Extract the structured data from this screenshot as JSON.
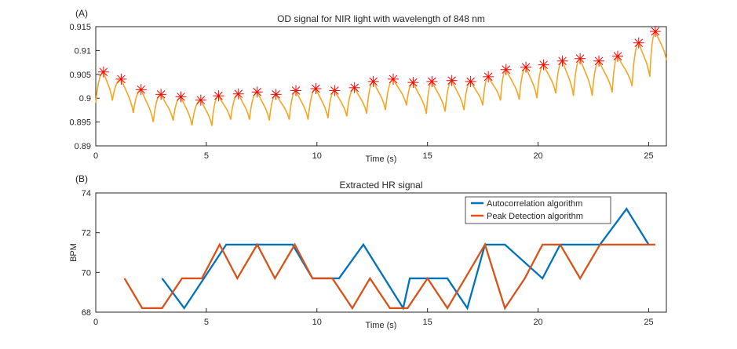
{
  "chart_data": [
    {
      "type": "line",
      "panel_label": "(A)",
      "title": "OD signal for NIR light with wavelength of 848 nm",
      "xlabel": "Time (s)",
      "ylabel": "",
      "xlim": [
        0,
        25.8
      ],
      "ylim": [
        0.89,
        0.915
      ],
      "xticks": [
        0,
        5,
        10,
        15,
        20,
        25
      ],
      "yticks": [
        0.89,
        0.895,
        0.9,
        0.905,
        0.91,
        0.915
      ],
      "ytick_labels": [
        "0.89",
        "0.895",
        "0.9",
        "0.905",
        "0.91",
        "0.915"
      ],
      "grid": false,
      "line_color": "#F5A623",
      "marker_color": "#FF0000",
      "peaks": {
        "t": [
          0.35,
          1.15,
          2.05,
          2.95,
          3.85,
          4.75,
          5.55,
          6.45,
          7.3,
          8.15,
          9.05,
          9.95,
          10.8,
          11.7,
          12.55,
          13.45,
          14.35,
          15.2,
          16.1,
          16.95,
          17.75,
          18.55,
          19.45,
          20.25,
          21.1,
          21.9,
          22.75,
          23.6,
          24.55,
          25.3
        ],
        "od": [
          0.9055,
          0.904,
          0.9018,
          0.9008,
          0.9003,
          0.8996,
          0.9005,
          0.9009,
          0.9013,
          0.9008,
          0.9016,
          0.902,
          0.9016,
          0.9022,
          0.9035,
          0.904,
          0.9033,
          0.9035,
          0.9037,
          0.9035,
          0.9045,
          0.906,
          0.9065,
          0.907,
          0.9078,
          0.9083,
          0.9078,
          0.9088,
          0.9116,
          0.914
        ]
      },
      "troughs": {
        "t": [
          0.0,
          0.75,
          1.7,
          2.6,
          3.5,
          4.35,
          5.25,
          6.1,
          6.95,
          7.85,
          8.75,
          9.6,
          10.5,
          11.35,
          12.25,
          13.1,
          14.05,
          14.95,
          15.8,
          16.65,
          17.5,
          18.3,
          19.15,
          19.95,
          20.8,
          21.6,
          22.45,
          23.35,
          24.25,
          25.05,
          25.8
        ],
        "od": [
          0.899,
          0.8995,
          0.8969,
          0.895,
          0.8953,
          0.8943,
          0.8942,
          0.8955,
          0.8955,
          0.8953,
          0.8955,
          0.8955,
          0.8958,
          0.8962,
          0.8968,
          0.8975,
          0.8985,
          0.8967,
          0.8972,
          0.8975,
          0.8985,
          0.8995,
          0.8997,
          0.9,
          0.901,
          0.9005,
          0.9005,
          0.9012,
          0.9025,
          0.9045,
          0.908
        ]
      }
    },
    {
      "type": "line",
      "panel_label": "(B)",
      "title": "Extracted HR signal",
      "xlabel": "Time (s)",
      "ylabel": "BPM",
      "xlim": [
        0,
        25.8
      ],
      "ylim": [
        68,
        74
      ],
      "xticks": [
        0,
        5,
        10,
        15,
        20,
        25
      ],
      "yticks": [
        68,
        70,
        72,
        74
      ],
      "ytick_labels": [
        "68",
        "70",
        "72",
        "74"
      ],
      "grid": false,
      "legend_position": "top-right",
      "series": [
        {
          "name": "Autocorrelation algorithm",
          "color": "#0072BD",
          "x": [
            3.0,
            4.0,
            5.9,
            8.9,
            9.8,
            11.0,
            12.1,
            13.9,
            14.2,
            15.9,
            16.8,
            17.6,
            18.5,
            20.2,
            21.0,
            22.8,
            24.0,
            25.0
          ],
          "y": [
            69.7,
            68.2,
            71.4,
            71.4,
            69.7,
            69.7,
            71.4,
            68.2,
            69.7,
            69.7,
            68.2,
            71.4,
            71.4,
            69.7,
            71.4,
            71.4,
            73.2,
            71.4
          ]
        },
        {
          "name": "Peak Detection algorithm",
          "color": "#D95319",
          "x": [
            1.3,
            2.1,
            3.0,
            3.9,
            4.8,
            5.6,
            6.4,
            7.3,
            8.1,
            9.0,
            9.8,
            10.7,
            11.6,
            12.4,
            13.3,
            14.1,
            15.0,
            15.9,
            16.7,
            17.6,
            18.5,
            19.4,
            20.2,
            21.0,
            21.9,
            22.8,
            23.7,
            24.5,
            25.3
          ],
          "y": [
            69.7,
            68.2,
            68.2,
            69.7,
            69.7,
            71.4,
            69.7,
            71.4,
            69.7,
            71.4,
            69.7,
            69.7,
            68.2,
            69.7,
            68.2,
            68.2,
            69.7,
            68.2,
            69.7,
            71.4,
            68.2,
            69.7,
            71.4,
            71.4,
            69.7,
            71.4,
            71.4,
            71.4,
            71.4
          ]
        }
      ]
    }
  ]
}
